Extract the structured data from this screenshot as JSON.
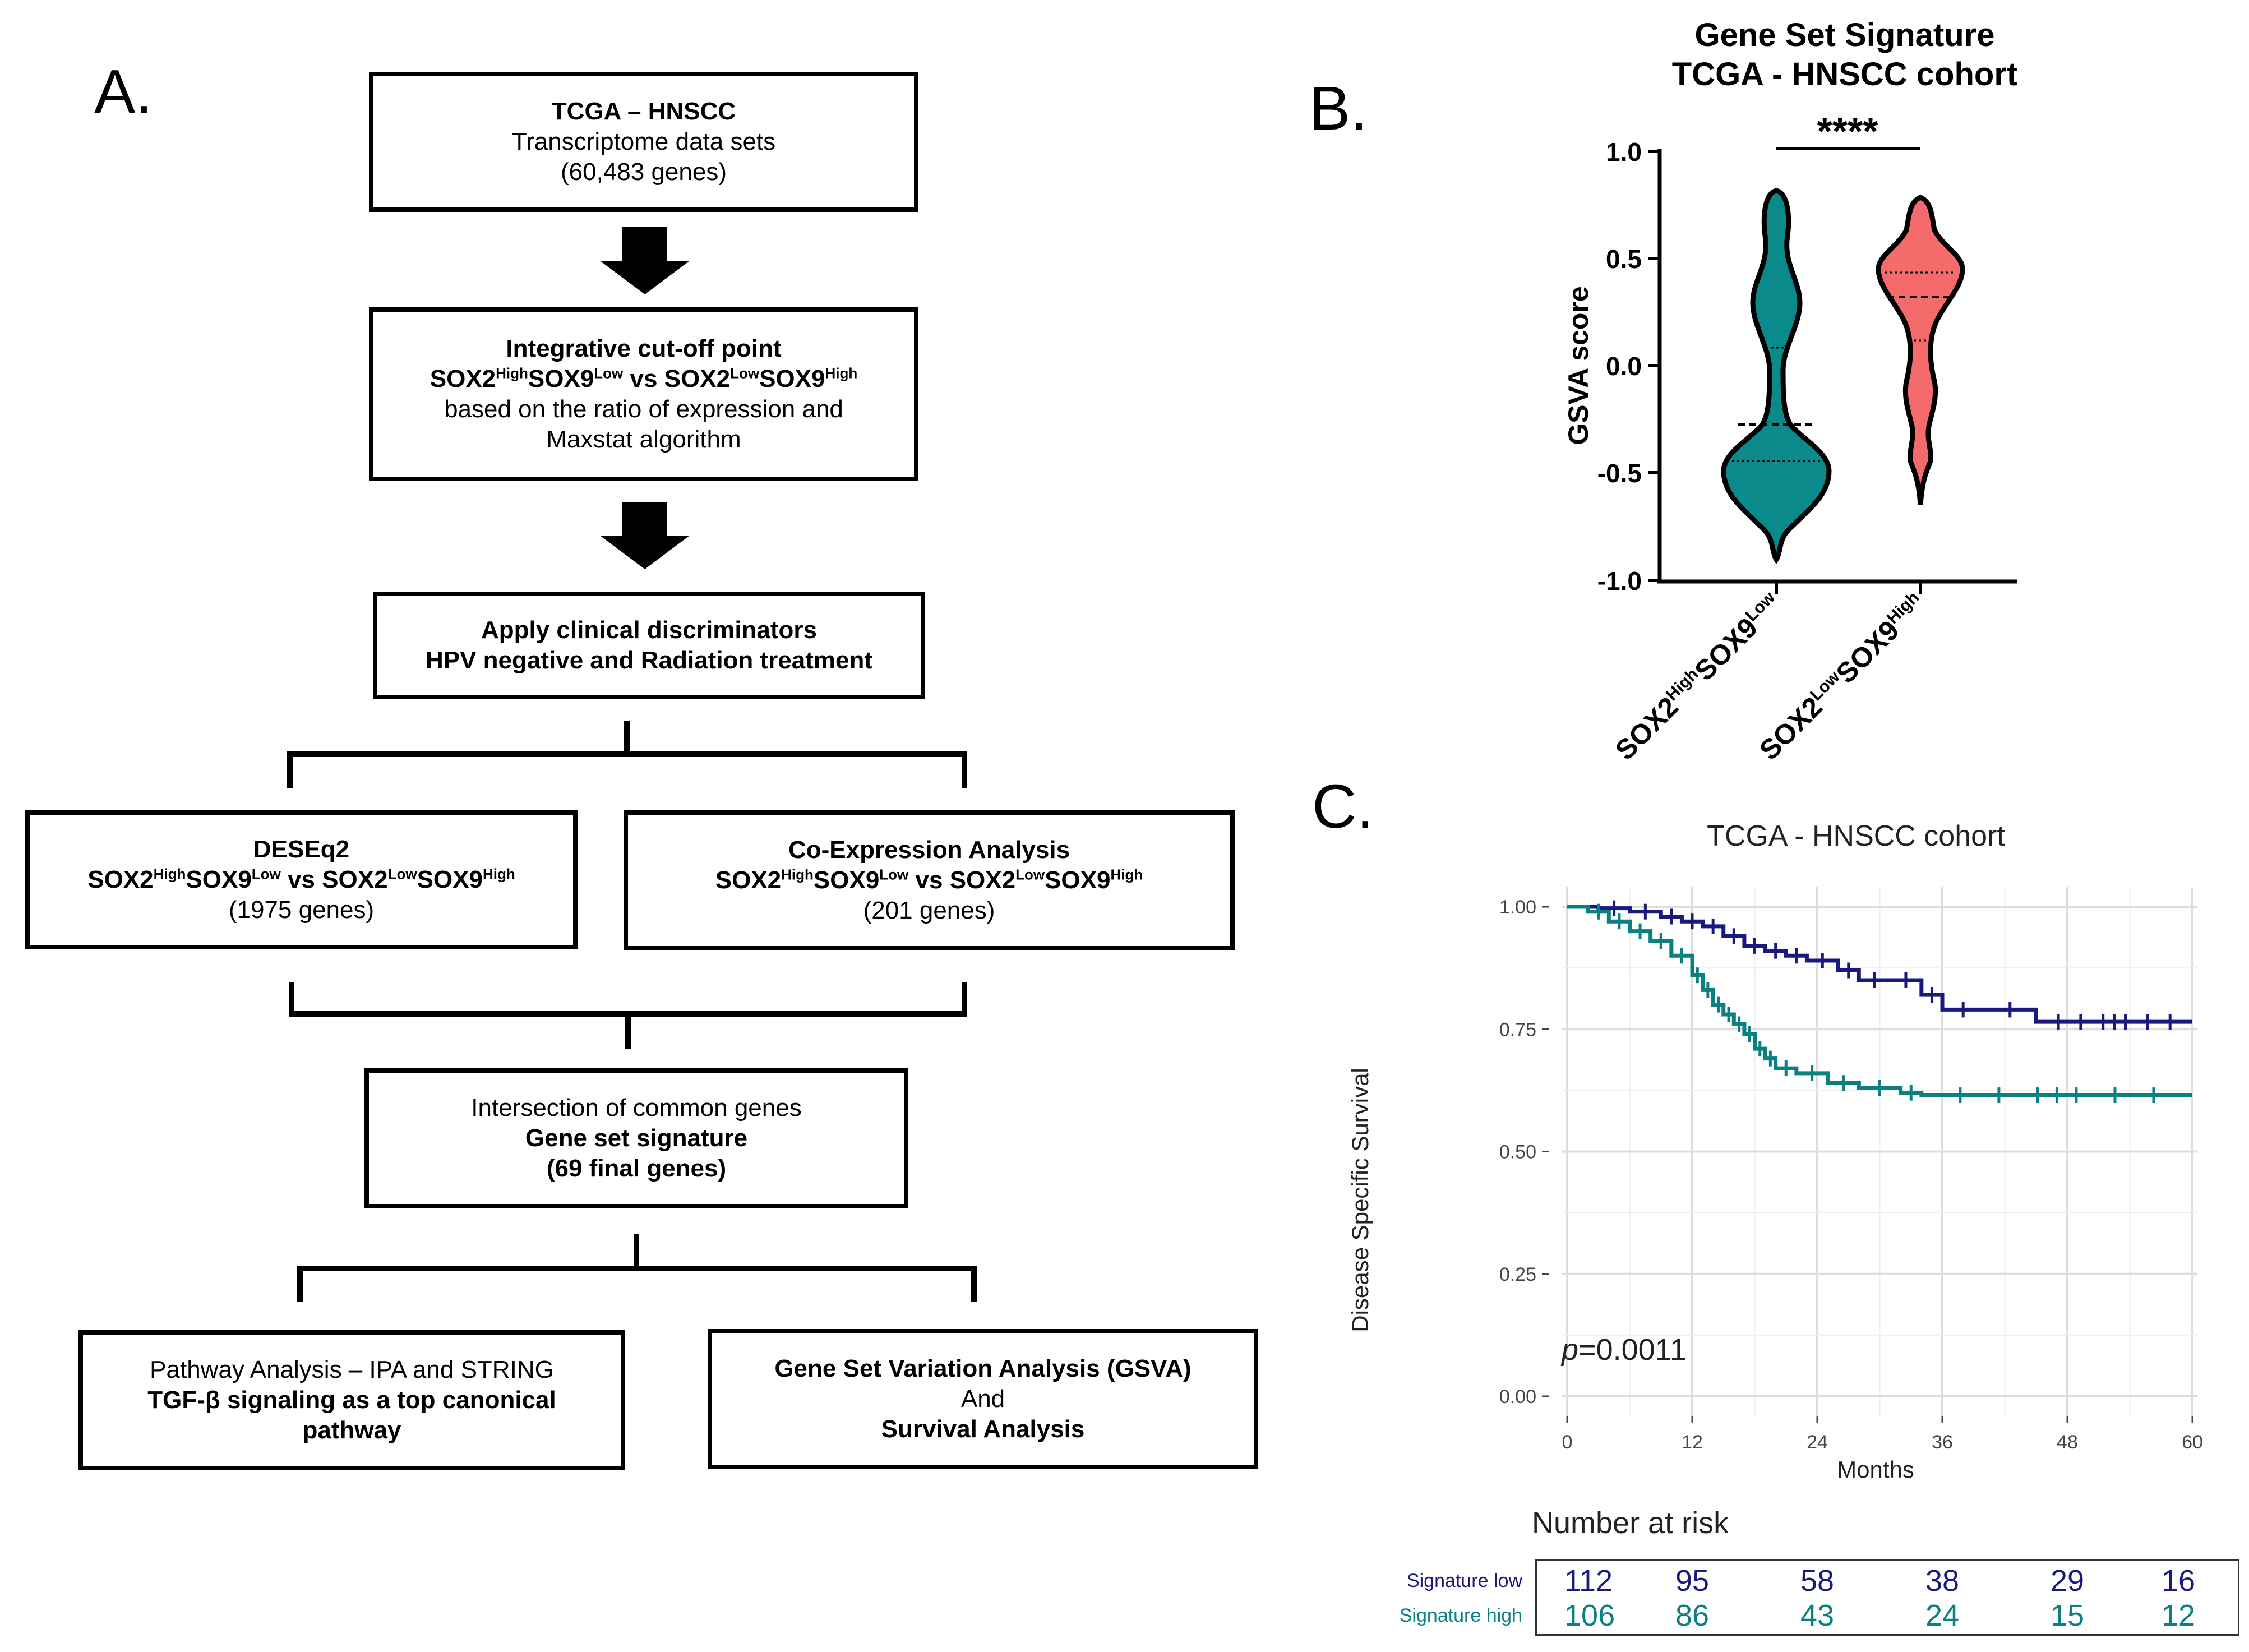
{
  "panel_labels": {
    "a": "A.",
    "b": "B.",
    "c": "C."
  },
  "flowchart": {
    "box1": {
      "line1": "TCGA – HNSCC",
      "line2": "Transcriptome data sets",
      "line3": "(60,483 genes)"
    },
    "box2": {
      "line1": "Integrative cut-off point",
      "sox2": "SOX2",
      "high": "High",
      "sox9": "SOX9",
      "low": "Low",
      "vs": " vs ",
      "line3": "based on the ratio of expression and",
      "line4": "Maxstat algorithm"
    },
    "box3": {
      "line1": "Apply clinical discriminators",
      "line2": "HPV negative and Radiation treatment"
    },
    "box4": {
      "line1": "DESEq2",
      "line3": "(1975 genes)"
    },
    "box5": {
      "line1": "Co-Expression Analysis",
      "line3": "(201 genes)"
    },
    "box6": {
      "line1": "Intersection of common genes",
      "line2": "Gene set signature",
      "line3": "(69 final genes)"
    },
    "box7": {
      "line1": "Pathway Analysis – IPA and STRING",
      "line2": "TGF-β signaling as a top canonical",
      "line3": "pathway"
    },
    "box8": {
      "line1": "Gene Set Variation Analysis (GSVA)",
      "line2": "And",
      "line3": "Survival Analysis"
    }
  },
  "chart_data": [
    {
      "type": "violin",
      "title": "Gene Set Signature",
      "subtitle": "TCGA - HNSCC cohort",
      "ylabel": "GSVA score",
      "ylim": [
        -1.0,
        1.0
      ],
      "yticks": [
        "1.0",
        "0.5",
        "0.0",
        "-0.5",
        "-1.0"
      ],
      "significance": "****",
      "categories": [
        {
          "name": "SOX2HighSOX9Low",
          "base1": "SOX2",
          "sup1": "High",
          "base2": "SOX9",
          "sup2": "Low",
          "color": "#0a8a8a",
          "min": -0.9,
          "max": 0.8,
          "median": -0.28,
          "q1": -0.44,
          "q3": 0.08
        },
        {
          "name": "SOX2LowSOX9High",
          "base1": "SOX2",
          "sup1": "Low",
          "base2": "SOX9",
          "sup2": "High",
          "color": "#f56b6b",
          "min": -0.66,
          "max": 0.77,
          "median": 0.31,
          "q1": 0.12,
          "q3": 0.43
        }
      ]
    },
    {
      "type": "line",
      "subtype": "kaplan-meier",
      "title": "TCGA - HNSCC cohort",
      "xlabel": "Months",
      "ylabel": "Disease Specific Survival",
      "xlim": [
        0,
        60
      ],
      "ylim": [
        0,
        1
      ],
      "xticks": [
        "0",
        "12",
        "24",
        "36",
        "48",
        "60"
      ],
      "yticks": [
        "1.00",
        "0.75",
        "0.50",
        "0.25",
        "0.00"
      ],
      "pvalue_prefix": "p",
      "pvalue": "=0.0011",
      "series": [
        {
          "name": "Signature low",
          "color": "#1a1a7e",
          "x": [
            0,
            3,
            6,
            9,
            11,
            13,
            15,
            17,
            19,
            21,
            23,
            26,
            28,
            31,
            34,
            36,
            40,
            45,
            60
          ],
          "y": [
            1.0,
            0.997,
            0.99,
            0.98,
            0.97,
            0.96,
            0.94,
            0.92,
            0.91,
            0.9,
            0.89,
            0.87,
            0.85,
            0.85,
            0.82,
            0.79,
            0.79,
            0.765,
            0.765
          ]
        },
        {
          "name": "Signature high",
          "color": "#0a8080",
          "x": [
            0,
            2,
            4,
            6,
            8,
            10,
            12,
            13,
            14,
            15,
            16,
            17,
            18,
            19,
            20,
            22,
            25,
            28,
            32,
            34,
            60
          ],
          "y": [
            1.0,
            0.99,
            0.97,
            0.95,
            0.93,
            0.9,
            0.86,
            0.83,
            0.8,
            0.78,
            0.76,
            0.74,
            0.71,
            0.69,
            0.67,
            0.66,
            0.64,
            0.63,
            0.62,
            0.615,
            0.615
          ]
        }
      ]
    }
  ],
  "risk_table": {
    "title": "Number at risk",
    "rows": [
      {
        "label": "Signature low",
        "color": "#1a1a7e",
        "values": [
          "112",
          "95",
          "58",
          "38",
          "29",
          "16"
        ]
      },
      {
        "label": "Signature high",
        "color": "#0a8080",
        "values": [
          "106",
          "86",
          "43",
          "24",
          "15",
          "12"
        ]
      }
    ]
  }
}
